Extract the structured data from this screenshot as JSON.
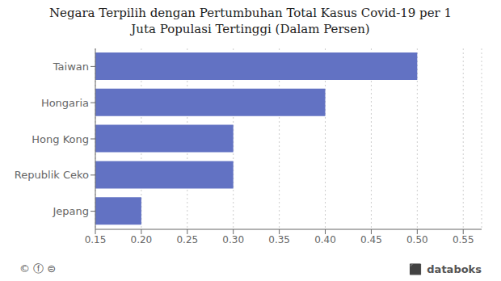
{
  "chart_data": {
    "type": "bar",
    "title": "Negara Terpilih dengan Pertumbuhan Total Kasus Covid-19 per 1\nJuta Populasi Tertinggi (Dalam Persen)",
    "categories": [
      "Jepang",
      "Republik Ceko",
      "Hong Kong",
      "Hongaria",
      "Taiwan"
    ],
    "values": [
      0.2,
      0.3,
      0.3,
      0.4,
      0.5
    ],
    "color": "#6272c3",
    "orientation": "horizontal",
    "xlim": [
      0.15,
      0.57
    ],
    "xticks": [
      0.15,
      {
        "value": 0.2,
        "label": "0.20"
      },
      0.25,
      {
        "value": 0.3,
        "label": "0.30"
      },
      0.35,
      {
        "value": 0.4,
        "label": "0.40"
      },
      0.45,
      {
        "value": 0.5,
        "label": "0.50"
      },
      0.55
    ],
    "grid": true,
    "annotations": [
      "© ⓕ ⊜",
      "⬛",
      "databoks"
    ]
  }
}
